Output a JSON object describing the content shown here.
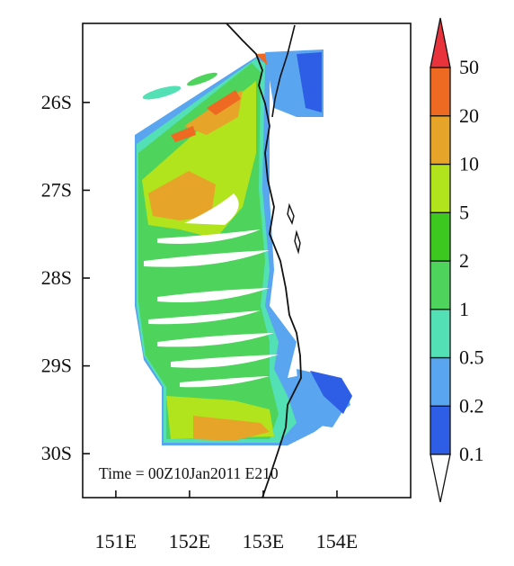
{
  "map": {
    "lat_labels": [
      "26S",
      "27S",
      "28S",
      "29S",
      "30S"
    ],
    "lon_labels": [
      "151E",
      "152E",
      "153E",
      "154E"
    ],
    "lat_range": [
      -30.5,
      -25.1
    ],
    "lon_range": [
      150.55,
      155.0
    ],
    "annotation": "Time = 00Z10Jan2011 E210"
  },
  "colorbar": {
    "labels": [
      "50",
      "20",
      "10",
      "5",
      "2",
      "1",
      "0.5",
      "0.2",
      "0.1"
    ],
    "levels": [
      0.1,
      0.2,
      0.5,
      1,
      2,
      5,
      10,
      20,
      50
    ],
    "colors": [
      "#ffffff",
      "#2e5ee6",
      "#5aa5f0",
      "#52e0b4",
      "#4ed35c",
      "#3cc81e",
      "#b2e41e",
      "#e6a428",
      "#ee6a23",
      "#e8323c"
    ]
  }
}
